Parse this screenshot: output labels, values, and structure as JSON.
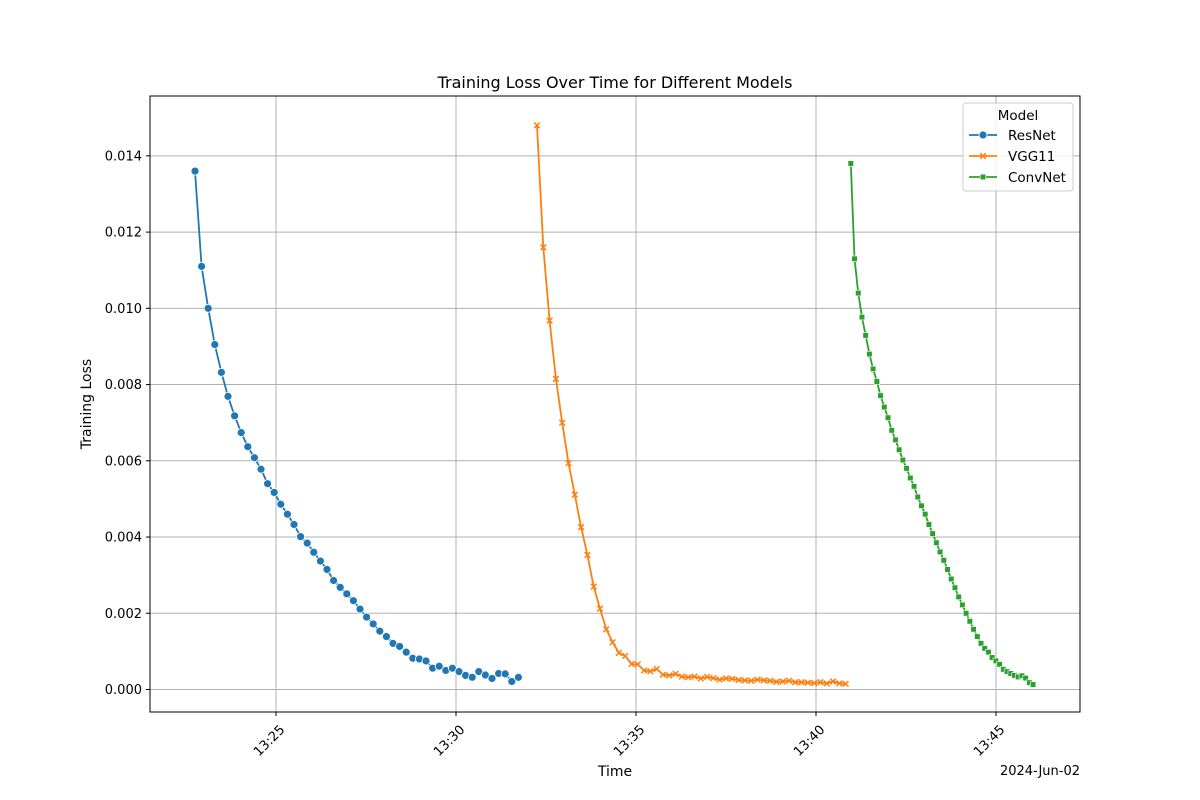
{
  "chart_data": {
    "type": "line",
    "title": "Training Loss Over Time for Different Models",
    "xlabel": "Time",
    "ylabel": "Training Loss",
    "x_offset_label": "2024-Jun-02",
    "xlim": [
      "13:21:30",
      "13:47:20"
    ],
    "ylim": [
      -0.00059,
      0.01557
    ],
    "x_ticks": [
      "13:25",
      "13:30",
      "13:35",
      "13:40",
      "13:45"
    ],
    "y_ticks": [
      "0.000",
      "0.002",
      "0.004",
      "0.006",
      "0.008",
      "0.010",
      "0.012",
      "0.014"
    ],
    "grid": true,
    "legend": {
      "title": "Model",
      "placement": "top-right"
    },
    "series": [
      {
        "name": "ResNet",
        "color": "#1f77b4",
        "marker": "circle",
        "start": "13:22:45",
        "interval_seconds": 11,
        "values": [
          0.0136,
          0.0111,
          0.01,
          0.00905,
          0.00832,
          0.00769,
          0.00718,
          0.00674,
          0.00637,
          0.00608,
          0.00578,
          0.0054,
          0.00517,
          0.00486,
          0.0046,
          0.00433,
          0.00401,
          0.00384,
          0.0036,
          0.00337,
          0.00315,
          0.00286,
          0.00268,
          0.00251,
          0.00233,
          0.00211,
          0.0019,
          0.00172,
          0.00153,
          0.00139,
          0.00121,
          0.00113,
          0.00098,
          0.00082,
          0.0008,
          0.00075,
          0.00056,
          0.00061,
          0.0005,
          0.00056,
          0.00047,
          0.00037,
          0.00032,
          0.00047,
          0.00038,
          0.00029,
          0.00042,
          0.00041,
          0.00021,
          0.00032
        ]
      },
      {
        "name": "VGG11",
        "color": "#ff7f0e",
        "marker": "x",
        "start": "13:32:15",
        "interval_seconds": 10.5,
        "values": [
          0.0148,
          0.0116,
          0.00968,
          0.00815,
          0.007,
          0.00594,
          0.00511,
          0.00426,
          0.00353,
          0.0027,
          0.00212,
          0.00158,
          0.00124,
          0.00096,
          0.00088,
          0.00067,
          0.00066,
          0.0005,
          0.00048,
          0.00054,
          0.00039,
          0.00037,
          0.00041,
          0.00034,
          0.00032,
          0.00034,
          0.00029,
          0.00033,
          0.0003,
          0.00026,
          0.00029,
          0.00028,
          0.00025,
          0.00024,
          0.00023,
          0.00026,
          0.00024,
          0.00023,
          0.0002,
          0.00021,
          0.00023,
          0.00019,
          0.00019,
          0.00018,
          0.00017,
          0.00019,
          0.00016,
          0.00021,
          0.00016,
          0.00015
        ]
      },
      {
        "name": "ConvNet",
        "color": "#2ca02c",
        "marker": "square",
        "start": "13:40:58",
        "interval_seconds": 6.2,
        "values": [
          0.0138,
          0.0113,
          0.0104,
          0.00977,
          0.00929,
          0.0088,
          0.00841,
          0.00808,
          0.00771,
          0.00741,
          0.00713,
          0.0068,
          0.00655,
          0.00629,
          0.00602,
          0.0058,
          0.00555,
          0.00533,
          0.00505,
          0.00482,
          0.0046,
          0.00433,
          0.00409,
          0.00385,
          0.00361,
          0.00339,
          0.00315,
          0.0029,
          0.00267,
          0.00243,
          0.00222,
          0.002,
          0.00179,
          0.00158,
          0.00139,
          0.00121,
          0.00108,
          0.00098,
          0.00084,
          0.00075,
          0.00066,
          0.00053,
          0.00047,
          0.00042,
          0.00037,
          0.00033,
          0.00036,
          0.0003,
          0.00018,
          0.00013
        ]
      }
    ]
  }
}
